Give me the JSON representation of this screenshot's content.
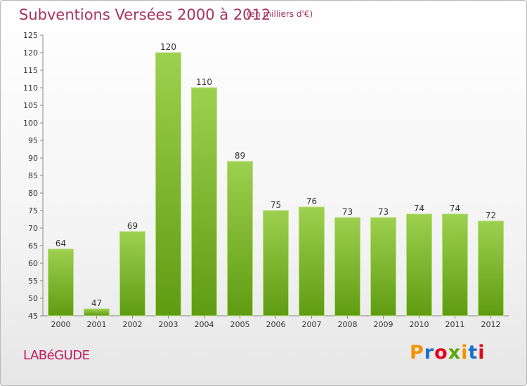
{
  "header": {
    "title": "Subventions Versées 2000 à 2012",
    "subtitle": "(en milliers d'€)"
  },
  "footer": {
    "commune": "LABéGUDE",
    "brand": "Proxiti",
    "brand_colors": [
      "#f39200",
      "#1a73c6",
      "#e2001a",
      "#5aa70a",
      "#f39200",
      "#1a73c6",
      "#e2001a"
    ]
  },
  "chart_data": {
    "type": "bar",
    "title": "Subventions Versées 2000 à 2012",
    "subtitle": "(en milliers d'€)",
    "xlabel": "",
    "ylabel": "",
    "categories": [
      "2000",
      "2001",
      "2002",
      "2003",
      "2004",
      "2005",
      "2006",
      "2007",
      "2008",
      "2009",
      "2010",
      "2011",
      "2012"
    ],
    "values": [
      64,
      47,
      69,
      120,
      110,
      89,
      75,
      76,
      73,
      73,
      74,
      74,
      72
    ],
    "ylim": [
      45,
      125
    ],
    "yticks": [
      45,
      50,
      55,
      60,
      65,
      70,
      75,
      80,
      85,
      90,
      95,
      100,
      105,
      110,
      115,
      120,
      125
    ],
    "grid": false,
    "legend": "none",
    "bar_color_top": "#9dd04f",
    "bar_color_bottom": "#5f9c12"
  }
}
